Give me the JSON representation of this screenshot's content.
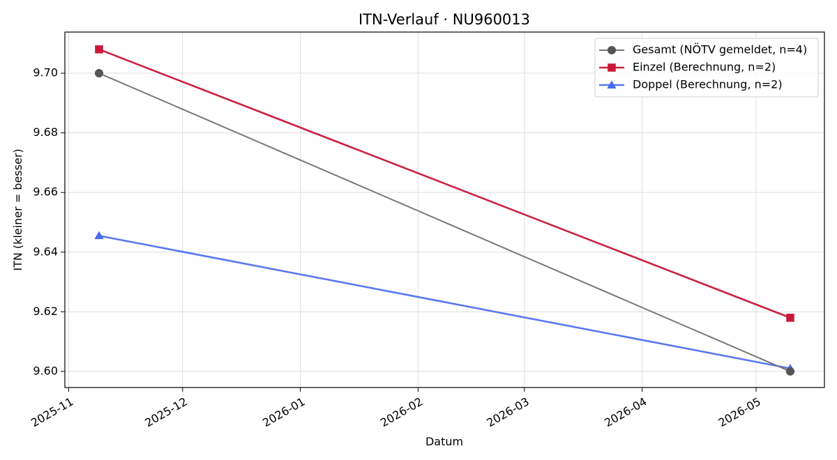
{
  "chart_data": {
    "type": "line",
    "title": "ITN-Verlauf · NU960013",
    "xlabel": "Datum",
    "ylabel": "ITN  (kleiner = besser)",
    "x": [
      "2025-11-09",
      "2026-05-10"
    ],
    "x_ticks": [
      "2025-11",
      "2025-12",
      "2026-01",
      "2026-02",
      "2026-03",
      "2026-04",
      "2026-05"
    ],
    "xlim": [
      "2025-10-31",
      "2026-05-19"
    ],
    "y_ticks": [
      "9.60",
      "9.62",
      "9.64",
      "9.66",
      "9.68",
      "9.70"
    ],
    "ylim": [
      9.5946,
      9.7138
    ],
    "grid": true,
    "legend_position": "top-right",
    "series": [
      {
        "name": "Gesamt (NÖTV gemeldet, n=4)",
        "values": [
          9.7,
          9.6
        ],
        "color": "#777777",
        "marker_color": "#555555",
        "marker": "circle"
      },
      {
        "name": "Einzel (Berechnung, n=2)",
        "values": [
          9.708,
          9.618
        ],
        "color": "#c82140",
        "marker_color": "#c8183a",
        "marker": "square"
      },
      {
        "name": "Doppel (Berechnung, n=2)",
        "values": [
          9.6455,
          9.601
        ],
        "color": "#5a78ee",
        "marker_color": "#4a6cf0",
        "marker": "triangle"
      }
    ]
  }
}
